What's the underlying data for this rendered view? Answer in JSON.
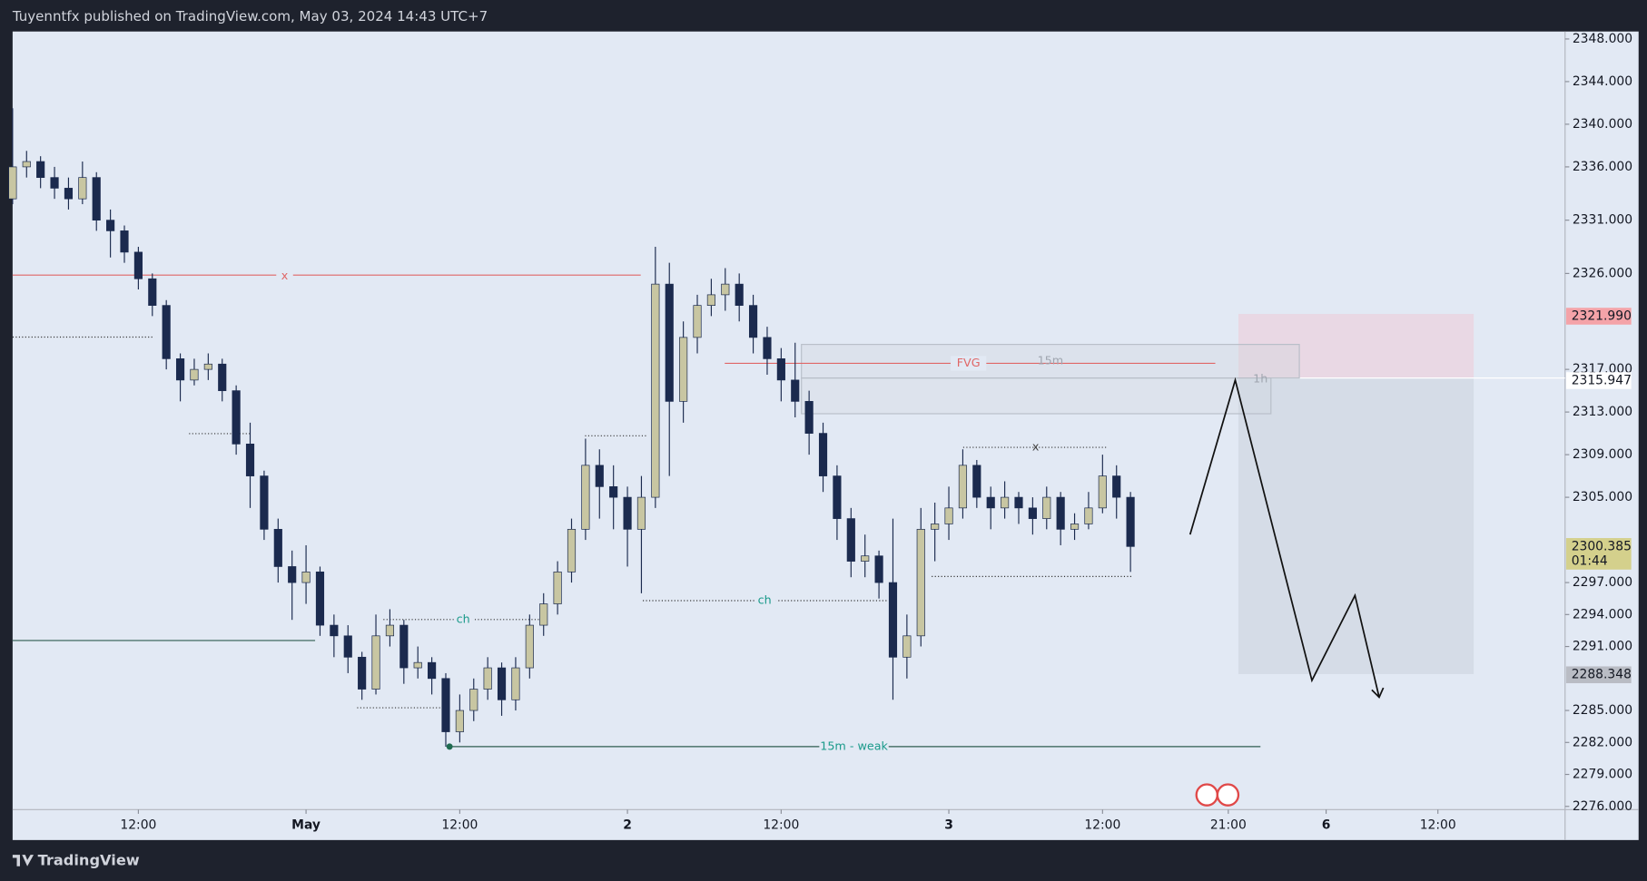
{
  "header": "Tuyenntfx published on TradingView.com, May 03, 2024 14:43 UTC+7",
  "footer": "TradingView",
  "chart_data": {
    "type": "candlestick",
    "up_color": "#c8c6a2",
    "down_color": "#1b2a4e",
    "grid": false,
    "x": [
      -9,
      -8,
      -7,
      -6,
      -5,
      -4,
      -3,
      -2,
      -1,
      0,
      1,
      2,
      3,
      4,
      5,
      6,
      7,
      8,
      9,
      10,
      11,
      12,
      13,
      14,
      15,
      16,
      17,
      18,
      19,
      20,
      21,
      22,
      23,
      24,
      25,
      26,
      27,
      28,
      29,
      30,
      31,
      32,
      33,
      34,
      35,
      36,
      37,
      38,
      39,
      40,
      41,
      42,
      43,
      44,
      45,
      46,
      47,
      48,
      49,
      50,
      51,
      52,
      53,
      54,
      55,
      56,
      57,
      58,
      59,
      60,
      61,
      62,
      63,
      64,
      65,
      66,
      67,
      68,
      69,
      70,
      71
    ],
    "open": [
      2333,
      2336,
      2336.5,
      2335,
      2334,
      2333,
      2335,
      2331,
      2330,
      2328,
      2325.5,
      2323,
      2318,
      2316,
      2317,
      2317.5,
      2315,
      2310,
      2307,
      2302,
      2298.5,
      2297,
      2298,
      2293,
      2292,
      2290,
      2287,
      2292,
      2293,
      2289,
      2289.5,
      2288,
      2283,
      2285,
      2287,
      2289,
      2286,
      2289,
      2293,
      2295,
      2298,
      2302,
      2308,
      2306,
      2305,
      2302,
      2305,
      2325,
      2314,
      2320,
      2323,
      2324,
      2325,
      2323,
      2320,
      2318,
      2316,
      2314,
      2311,
      2307,
      2303,
      2299,
      2299.5,
      2297,
      2290,
      2292,
      2302,
      2302.5,
      2304,
      2308,
      2305,
      2304,
      2305,
      2304,
      2303,
      2305,
      2302,
      2302.5,
      2304,
      2307,
      2305
    ],
    "high": [
      2341.5,
      2337.5,
      2337,
      2336,
      2335,
      2336.5,
      2335.5,
      2332,
      2330.5,
      2328.5,
      2326,
      2323.5,
      2318.5,
      2318,
      2318.5,
      2318,
      2315.5,
      2312,
      2307.5,
      2303,
      2300,
      2300.5,
      2298.5,
      2294,
      2293,
      2290.5,
      2294,
      2294.5,
      2293.5,
      2291,
      2290,
      2288.5,
      2286.5,
      2288,
      2290,
      2289.5,
      2290,
      2294,
      2296,
      2299,
      2303,
      2310.5,
      2309.5,
      2308,
      2306,
      2307,
      2328.5,
      2327,
      2321.5,
      2324,
      2325.5,
      2326.5,
      2326,
      2324,
      2321,
      2319,
      2319.5,
      2315,
      2312,
      2308,
      2304,
      2301.5,
      2300,
      2303,
      2294,
      2304,
      2304.5,
      2306,
      2309.5,
      2308.5,
      2306,
      2306.5,
      2305.5,
      2305,
      2306,
      2305.5,
      2303.5,
      2305.5,
      2309,
      2308,
      2305.5
    ],
    "low": [
      2332.5,
      2335,
      2334,
      2333,
      2332,
      2332.5,
      2330,
      2327.5,
      2327,
      2324.5,
      2322,
      2317,
      2314,
      2315.5,
      2316,
      2314,
      2309,
      2304,
      2301,
      2297,
      2293.5,
      2295,
      2292,
      2290,
      2288.5,
      2286,
      2286.5,
      2291,
      2287.5,
      2288,
      2286.5,
      2281.6,
      2282,
      2284,
      2286,
      2284.5,
      2285,
      2288,
      2292,
      2294,
      2297,
      2301,
      2303,
      2302,
      2298.5,
      2296,
      2304,
      2307,
      2312,
      2318.5,
      2322,
      2322.5,
      2321.5,
      2318.5,
      2316.5,
      2314,
      2312.5,
      2309,
      2305.5,
      2301,
      2297.5,
      2297.5,
      2295.5,
      2286,
      2288,
      2291,
      2299,
      2301,
      2303,
      2304,
      2302,
      2303,
      2302.5,
      2301.5,
      2302,
      2300.5,
      2301,
      2302,
      2303.5,
      2303,
      2298
    ],
    "close": [
      2336,
      2336.5,
      2335,
      2334,
      2333,
      2335,
      2331,
      2330,
      2328,
      2325.5,
      2323,
      2318,
      2316,
      2317,
      2317.5,
      2315,
      2310,
      2307,
      2302,
      2298.5,
      2297,
      2298,
      2293,
      2292,
      2290,
      2287,
      2292,
      2293,
      2289,
      2289.5,
      2288,
      2283,
      2285,
      2287,
      2289,
      2286,
      2289,
      2293,
      2295,
      2298,
      2302,
      2308,
      2306,
      2305,
      2302,
      2305,
      2325,
      2314,
      2320,
      2323,
      2324,
      2325,
      2323,
      2320,
      2318,
      2316,
      2314,
      2311,
      2307,
      2303,
      2299,
      2299.5,
      2297,
      2290,
      2292,
      2302,
      2302.5,
      2304,
      2308,
      2305,
      2304,
      2305,
      2304,
      2303,
      2305,
      2302,
      2302.5,
      2304,
      2307,
      2305,
      2300.385
    ],
    "xlim": [
      -9,
      102.1
    ],
    "xticks": [
      {
        "value": 0,
        "label": "12:00"
      },
      {
        "value": 12,
        "label": "May"
      },
      {
        "value": 23,
        "label": "12:00"
      },
      {
        "value": 35,
        "label": "2"
      },
      {
        "value": 46,
        "label": "12:00"
      },
      {
        "value": 58,
        "label": "3"
      },
      {
        "value": 69,
        "label": "12:00"
      },
      {
        "value": 78,
        "label": "21:00"
      },
      {
        "value": 85,
        "label": "6"
      },
      {
        "value": 93,
        "label": "12:00"
      }
    ],
    "ylim": [
      2275.7,
      2348.7
    ],
    "yticks": [
      {
        "value": 2348,
        "label": "2348.000"
      },
      {
        "value": 2344,
        "label": "2344.000"
      },
      {
        "value": 2340,
        "label": "2340.000"
      },
      {
        "value": 2336,
        "label": "2336.000"
      },
      {
        "value": 2331,
        "label": "2331.000"
      },
      {
        "value": 2326,
        "label": "2326.000"
      },
      {
        "value": 2317,
        "label": "2317.000"
      },
      {
        "value": 2313,
        "label": "2313.000"
      },
      {
        "value": 2309,
        "label": "2309.000"
      },
      {
        "value": 2305,
        "label": "2305.000"
      },
      {
        "value": 2297,
        "label": "2297.000"
      },
      {
        "value": 2294,
        "label": "2294.000"
      },
      {
        "value": 2291,
        "label": "2291.000"
      },
      {
        "value": 2285,
        "label": "2285.000"
      },
      {
        "value": 2282,
        "label": "2282.000"
      },
      {
        "value": 2279,
        "label": "2279.000"
      },
      {
        "value": 2276,
        "label": "2276.000"
      }
    ],
    "price_labels": [
      {
        "value": 2321.99,
        "label": "2321.990",
        "color": "#f4a3a8"
      },
      {
        "value": 2315.947,
        "label": "2315.947",
        "color": "#ffffff"
      },
      {
        "value": 2300.385,
        "label": "2300.385",
        "countdown": "01:44",
        "color": "#d4d08c"
      },
      {
        "value": 2288.348,
        "label": "2288.348",
        "color": "#b9bcc4"
      }
    ],
    "annotations": [
      "x",
      "FVG",
      "15m",
      "1h",
      "x",
      "ch",
      "ch",
      "15m - weak"
    ]
  }
}
